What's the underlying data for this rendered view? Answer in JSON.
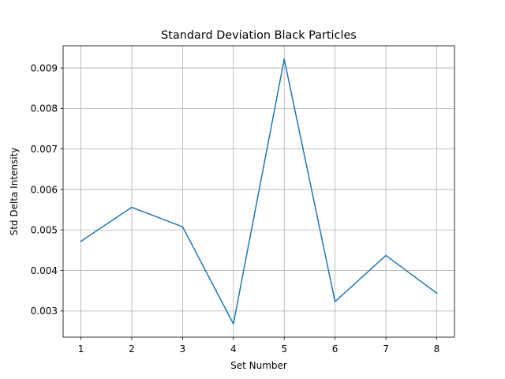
{
  "chart_data": {
    "type": "line",
    "title": "Standard Deviation Black Particles",
    "xlabel": "Set Number",
    "ylabel": "Std Delta Intensity",
    "x": [
      1,
      2,
      3,
      4,
      5,
      6,
      7,
      8
    ],
    "series": [
      {
        "values": [
          0.00472,
          0.00556,
          0.00508,
          0.00268,
          0.00922,
          0.00323,
          0.00437,
          0.00344
        ]
      }
    ],
    "xticks": [
      "1",
      "2",
      "3",
      "4",
      "5",
      "6",
      "7",
      "8"
    ],
    "yticks": [
      "0.003",
      "0.004",
      "0.005",
      "0.006",
      "0.007",
      "0.008",
      "0.009"
    ],
    "xlim": [
      0.65,
      8.35
    ],
    "ylim": [
      0.002354,
      0.009547
    ],
    "grid": true,
    "colors": {
      "line": "#1f77b4",
      "grid": "#b0b0b0",
      "axes": "#000000"
    }
  }
}
